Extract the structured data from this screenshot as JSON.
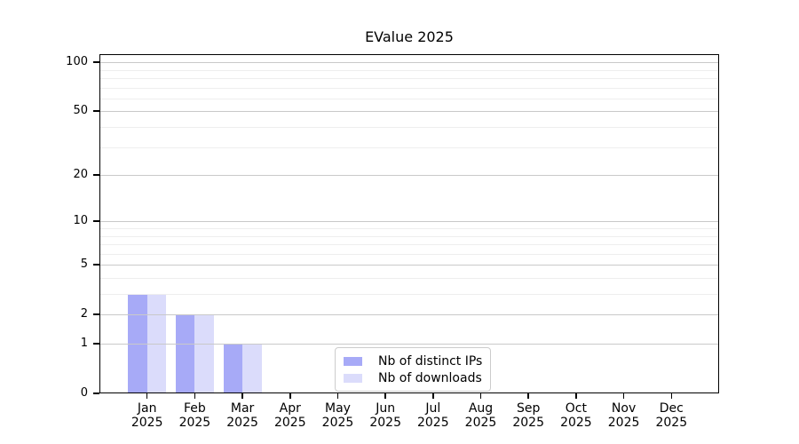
{
  "chart_data": {
    "type": "bar",
    "title": "EValue 2025",
    "categories": [
      "Jan 2025",
      "Feb 2025",
      "Mar 2025",
      "Apr 2025",
      "May 2025",
      "Jun 2025",
      "Jul 2025",
      "Aug 2025",
      "Sep 2025",
      "Oct 2025",
      "Nov 2025",
      "Dec 2025"
    ],
    "series": [
      {
        "name": "Nb of distinct IPs",
        "color": "#a7aaf7",
        "values": [
          3,
          2,
          1,
          0,
          0,
          0,
          0,
          0,
          0,
          0,
          0,
          0
        ]
      },
      {
        "name": "Nb of downloads",
        "color": "#dbdcfb",
        "values": [
          3,
          2,
          1,
          0,
          0,
          0,
          0,
          0,
          0,
          0,
          0,
          0
        ]
      }
    ],
    "xlabel": "",
    "ylabel": "",
    "yscale": "log1p",
    "ylim": [
      0,
      112
    ],
    "y_ticks": [
      "0",
      "1",
      "2",
      "5",
      "10",
      "20",
      "50",
      "100"
    ],
    "y_minor_gridlines": [
      3,
      4,
      6,
      7,
      8,
      9,
      30,
      40,
      60,
      70,
      80,
      90
    ],
    "grid": "horizontal",
    "legend_position": "lower-center"
  },
  "colors": {
    "background": "#ffffff",
    "axis": "#000000",
    "grid_major": "#c9c9c9",
    "grid_minor": "#eeeeee",
    "legend_border": "#cccccc",
    "tick_text": "#000000"
  }
}
